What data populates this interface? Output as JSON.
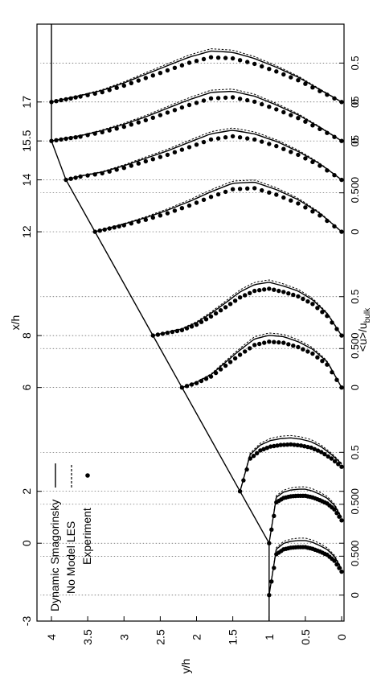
{
  "chart_data": {
    "type": "line",
    "orientation": "rotated-90-ccw",
    "xlabel": "x/h",
    "ylabel": "y/h",
    "xlim": [
      -3,
      20
    ],
    "ylim": [
      0,
      4.2
    ],
    "grid": "dotted vertical lines at each profile station",
    "legend_position": "bottom-left",
    "x_ticks": [
      "-3",
      "0",
      "2",
      "6",
      "8",
      "12",
      "14",
      "15.5",
      "17"
    ],
    "x_tick_values": [
      -3,
      0,
      2,
      6,
      8,
      12,
      14,
      15.5,
      17
    ],
    "y_ticks": [
      "4",
      "3.5",
      "3",
      "2.5",
      "2",
      "1.5",
      "1",
      "0.5",
      "0"
    ],
    "y_tick_values": [
      4,
      3.5,
      3,
      2.5,
      2,
      1.5,
      1,
      0.5,
      0
    ],
    "velocity_axis_label": "<u>/u",
    "velocity_axis_subscript": "bulk",
    "velocity_ticks": [
      {
        "label": "0",
        "x": -2
      },
      {
        "label": "0.50",
        "x": -0.5
      },
      {
        "label": "0",
        "x": 0
      },
      {
        "label": "0.50",
        "x": 1.5
      },
      {
        "label": "0",
        "x": 2
      },
      {
        "label": "0.5",
        "x": 3.5
      },
      {
        "label": "0",
        "x": 6
      },
      {
        "label": "0.50",
        "x": 7.5
      },
      {
        "label": "0",
        "x": 8
      },
      {
        "label": "0.5",
        "x": 9.5
      },
      {
        "label": "0",
        "x": 12
      },
      {
        "label": "0.50",
        "x": 13.5
      },
      {
        "label": "0",
        "x": 14
      },
      {
        "label": "05",
        "x": 15.5
      },
      {
        "label": "0",
        "x": 15.5
      },
      {
        "label": "05",
        "x": 17
      },
      {
        "label": "0",
        "x": 17
      },
      {
        "label": "0.5",
        "x": 18.5
      }
    ],
    "velocity_scale": 3,
    "gridlines": [
      -2,
      -0.5,
      0,
      1.5,
      2,
      3.5,
      6,
      7.5,
      8,
      9.5,
      12,
      13.5,
      14,
      15.5,
      17,
      18.5
    ],
    "wall": {
      "name": "channel wall",
      "x": [
        -3,
        0,
        2,
        6,
        8,
        12,
        14,
        15.5,
        17,
        17.5,
        20
      ],
      "y": [
        1,
        1,
        1.4,
        2.2,
        2.6,
        3.4,
        3.8,
        4,
        4,
        4,
        4
      ]
    },
    "profiles": [
      {
        "x0": -2,
        "h": 1,
        "scale": 0.81,
        "exp": [
          [
            0.0,
            0.43
          ],
          [
            0.1,
            0.63
          ],
          [
            0.2,
            0.74
          ],
          [
            0.3,
            0.8
          ],
          [
            0.4,
            0.85
          ],
          [
            0.5,
            0.88
          ],
          [
            0.6,
            0.88
          ],
          [
            0.7,
            0.87
          ],
          [
            0.8,
            0.84
          ],
          [
            0.9,
            0.75
          ],
          [
            1.0,
            0.0
          ]
        ]
      },
      {
        "x0": 0,
        "h": 1,
        "scale": 0.84,
        "exp": [
          [
            0.0,
            0.42
          ],
          [
            0.1,
            0.62
          ],
          [
            0.2,
            0.73
          ],
          [
            0.3,
            0.79
          ],
          [
            0.4,
            0.84
          ],
          [
            0.5,
            0.87
          ],
          [
            0.6,
            0.87
          ],
          [
            0.7,
            0.86
          ],
          [
            0.8,
            0.83
          ],
          [
            0.9,
            0.75
          ],
          [
            1.0,
            0.0
          ]
        ]
      },
      {
        "x0": 2,
        "h": 1.4,
        "scale": 0.86,
        "exp": [
          [
            0.0,
            0.45
          ],
          [
            0.14,
            0.6
          ],
          [
            0.28,
            0.72
          ],
          [
            0.42,
            0.8
          ],
          [
            0.56,
            0.84
          ],
          [
            0.7,
            0.86
          ],
          [
            0.84,
            0.85
          ],
          [
            0.98,
            0.82
          ],
          [
            1.12,
            0.75
          ],
          [
            1.26,
            0.6
          ],
          [
            1.4,
            0.0
          ]
        ]
      },
      {
        "x0": 6,
        "h": 2.2,
        "scale": 0.85,
        "exp": [
          [
            0.0,
            0.0
          ],
          [
            0.2,
            0.42
          ],
          [
            0.4,
            0.62
          ],
          [
            0.6,
            0.74
          ],
          [
            0.8,
            0.82
          ],
          [
            1.0,
            0.84
          ],
          [
            1.2,
            0.78
          ],
          [
            1.4,
            0.6
          ],
          [
            1.6,
            0.4
          ],
          [
            1.8,
            0.2
          ],
          [
            2.0,
            0.08
          ],
          [
            2.2,
            0.0
          ]
        ]
      },
      {
        "x0": 8,
        "h": 2.6,
        "scale": 0.88,
        "exp": [
          [
            0.0,
            0.0
          ],
          [
            0.2,
            0.36
          ],
          [
            0.4,
            0.58
          ],
          [
            0.6,
            0.72
          ],
          [
            0.8,
            0.8
          ],
          [
            1.0,
            0.86
          ],
          [
            1.2,
            0.82
          ],
          [
            1.4,
            0.7
          ],
          [
            1.6,
            0.52
          ],
          [
            1.8,
            0.35
          ],
          [
            2.0,
            0.2
          ],
          [
            2.2,
            0.1
          ],
          [
            2.4,
            0.05
          ],
          [
            2.6,
            0.0
          ]
        ]
      },
      {
        "x0": 12,
        "h": 3.4,
        "scale": 0.82,
        "exp": [
          [
            0.0,
            0.0
          ],
          [
            0.3,
            0.3
          ],
          [
            0.6,
            0.52
          ],
          [
            0.9,
            0.68
          ],
          [
            1.2,
            0.8
          ],
          [
            1.5,
            0.78
          ],
          [
            1.8,
            0.64
          ],
          [
            2.1,
            0.48
          ],
          [
            2.4,
            0.34
          ],
          [
            2.7,
            0.22
          ],
          [
            3.0,
            0.12
          ],
          [
            3.2,
            0.06
          ],
          [
            3.4,
            0.0
          ]
        ]
      },
      {
        "x0": 14,
        "h": 3.8,
        "scale": 0.85,
        "exp": [
          [
            0.0,
            0.0
          ],
          [
            0.3,
            0.26
          ],
          [
            0.6,
            0.46
          ],
          [
            0.9,
            0.62
          ],
          [
            1.2,
            0.74
          ],
          [
            1.5,
            0.8
          ],
          [
            1.8,
            0.74
          ],
          [
            2.1,
            0.6
          ],
          [
            2.4,
            0.46
          ],
          [
            2.7,
            0.34
          ],
          [
            3.0,
            0.22
          ],
          [
            3.3,
            0.12
          ],
          [
            3.6,
            0.06
          ],
          [
            3.8,
            0.0
          ]
        ]
      },
      {
        "x0": 15.5,
        "h": 4,
        "scale": 0.86,
        "exp": [
          [
            0.0,
            0.0
          ],
          [
            0.3,
            0.22
          ],
          [
            0.6,
            0.42
          ],
          [
            0.9,
            0.58
          ],
          [
            1.2,
            0.72
          ],
          [
            1.5,
            0.8
          ],
          [
            1.8,
            0.78
          ],
          [
            2.1,
            0.66
          ],
          [
            2.4,
            0.52
          ],
          [
            2.7,
            0.38
          ],
          [
            3.0,
            0.26
          ],
          [
            3.3,
            0.16
          ],
          [
            3.6,
            0.08
          ],
          [
            3.8,
            0.04
          ],
          [
            4.0,
            0.0
          ]
        ]
      },
      {
        "x0": 17,
        "h": 4,
        "scale": 0.88,
        "exp": [
          [
            0.0,
            0.0
          ],
          [
            0.3,
            0.2
          ],
          [
            0.6,
            0.4
          ],
          [
            0.9,
            0.56
          ],
          [
            1.2,
            0.7
          ],
          [
            1.5,
            0.8
          ],
          [
            1.8,
            0.82
          ],
          [
            2.1,
            0.72
          ],
          [
            2.4,
            0.58
          ],
          [
            2.7,
            0.44
          ],
          [
            3.0,
            0.3
          ],
          [
            3.3,
            0.18
          ],
          [
            3.6,
            0.1
          ],
          [
            3.8,
            0.05
          ],
          [
            4.0,
            0.0
          ]
        ]
      }
    ],
    "series": [
      {
        "name": "Dynamic Smagorinsky",
        "style": "solid"
      },
      {
        "name": "No Model LES",
        "style": "dashed"
      },
      {
        "name": "Experiment",
        "style": "dots"
      }
    ]
  }
}
